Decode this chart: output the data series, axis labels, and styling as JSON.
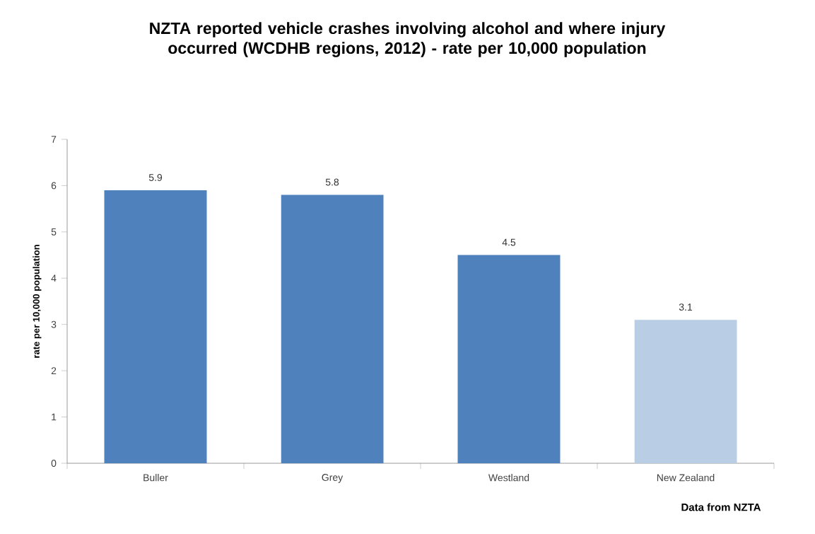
{
  "chart_data": {
    "type": "bar",
    "title": "NZTA reported vehicle crashes involving alcohol and where injury occurred (WCDHB regions, 2012) - rate per 10,000 population",
    "ylabel": "rate per 10,000 population",
    "categories": [
      "Buller",
      "Grey",
      "Westland",
      "New Zealand"
    ],
    "values": [
      5.9,
      5.8,
      4.5,
      3.1
    ],
    "colors": [
      "#4f81bd",
      "#4f81bd",
      "#4f81bd",
      "#b9cde5"
    ],
    "ylim": [
      0,
      7
    ],
    "yticks": [
      0,
      1,
      2,
      3,
      4,
      5,
      6,
      7
    ],
    "data_labels": true,
    "grid": false,
    "annotations": [
      "Data from NZTA"
    ]
  }
}
